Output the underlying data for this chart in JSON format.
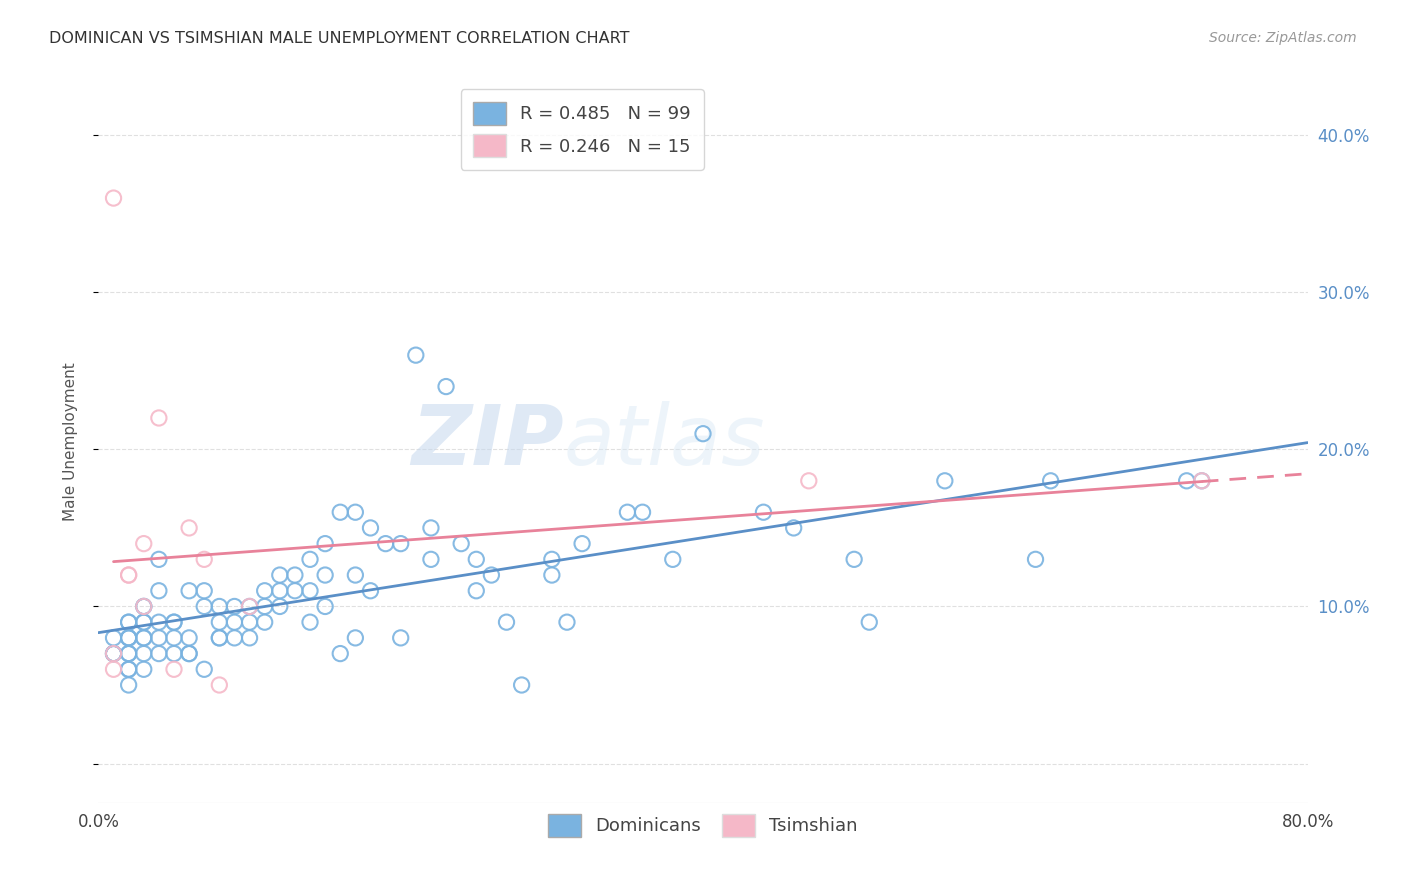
{
  "title": "DOMINICAN VS TSIMSHIAN MALE UNEMPLOYMENT CORRELATION CHART",
  "source": "Source: ZipAtlas.com",
  "ylabel": "Male Unemployment",
  "xlim": [
    0.0,
    0.8
  ],
  "ylim": [
    -0.025,
    0.435
  ],
  "dominicans_color": "#7ab3e0",
  "dominicans_edge": "#7ab3e0",
  "tsimshian_color": "#f5b8c8",
  "tsimshian_edge": "#f5b8c8",
  "trend_dominicans_color": "#5a8fc7",
  "trend_tsimshian_color": "#e8829a",
  "r_dominicans": 0.485,
  "n_dominicans": 99,
  "r_tsimshian": 0.246,
  "n_tsimshian": 15,
  "watermark_zip": "ZIP",
  "watermark_atlas": "atlas",
  "background_color": "#ffffff",
  "grid_color": "#e0e0e0",
  "right_tick_color": "#5a8fc7",
  "dominicans_x": [
    0.01,
    0.01,
    0.01,
    0.01,
    0.02,
    0.02,
    0.02,
    0.02,
    0.02,
    0.02,
    0.02,
    0.02,
    0.02,
    0.02,
    0.03,
    0.03,
    0.03,
    0.03,
    0.03,
    0.03,
    0.03,
    0.03,
    0.04,
    0.04,
    0.04,
    0.04,
    0.04,
    0.05,
    0.05,
    0.05,
    0.05,
    0.06,
    0.06,
    0.06,
    0.06,
    0.07,
    0.07,
    0.07,
    0.08,
    0.08,
    0.08,
    0.08,
    0.09,
    0.09,
    0.09,
    0.1,
    0.1,
    0.1,
    0.11,
    0.11,
    0.11,
    0.12,
    0.12,
    0.12,
    0.13,
    0.13,
    0.14,
    0.14,
    0.14,
    0.15,
    0.15,
    0.15,
    0.16,
    0.16,
    0.17,
    0.17,
    0.17,
    0.18,
    0.18,
    0.19,
    0.2,
    0.2,
    0.21,
    0.22,
    0.22,
    0.23,
    0.24,
    0.25,
    0.25,
    0.26,
    0.27,
    0.28,
    0.3,
    0.3,
    0.31,
    0.32,
    0.35,
    0.36,
    0.38,
    0.4,
    0.44,
    0.46,
    0.5,
    0.51,
    0.56,
    0.62,
    0.63,
    0.72,
    0.73
  ],
  "dominicans_y": [
    0.07,
    0.07,
    0.07,
    0.08,
    0.05,
    0.06,
    0.06,
    0.07,
    0.07,
    0.08,
    0.08,
    0.08,
    0.09,
    0.09,
    0.06,
    0.07,
    0.08,
    0.08,
    0.09,
    0.09,
    0.1,
    0.1,
    0.07,
    0.08,
    0.09,
    0.11,
    0.13,
    0.07,
    0.08,
    0.09,
    0.09,
    0.07,
    0.07,
    0.08,
    0.11,
    0.06,
    0.1,
    0.11,
    0.08,
    0.08,
    0.09,
    0.1,
    0.08,
    0.09,
    0.1,
    0.08,
    0.09,
    0.1,
    0.09,
    0.1,
    0.11,
    0.1,
    0.11,
    0.12,
    0.11,
    0.12,
    0.09,
    0.11,
    0.13,
    0.1,
    0.12,
    0.14,
    0.07,
    0.16,
    0.08,
    0.12,
    0.16,
    0.11,
    0.15,
    0.14,
    0.08,
    0.14,
    0.26,
    0.13,
    0.15,
    0.24,
    0.14,
    0.11,
    0.13,
    0.12,
    0.09,
    0.05,
    0.12,
    0.13,
    0.09,
    0.14,
    0.16,
    0.16,
    0.13,
    0.21,
    0.16,
    0.15,
    0.13,
    0.09,
    0.18,
    0.13,
    0.18,
    0.18,
    0.18
  ],
  "tsimshian_x": [
    0.01,
    0.01,
    0.01,
    0.02,
    0.02,
    0.03,
    0.03,
    0.04,
    0.05,
    0.06,
    0.07,
    0.08,
    0.1,
    0.47,
    0.73
  ],
  "tsimshian_y": [
    0.06,
    0.07,
    0.36,
    0.12,
    0.12,
    0.1,
    0.14,
    0.22,
    0.06,
    0.15,
    0.13,
    0.05,
    0.1,
    0.18,
    0.18
  ]
}
